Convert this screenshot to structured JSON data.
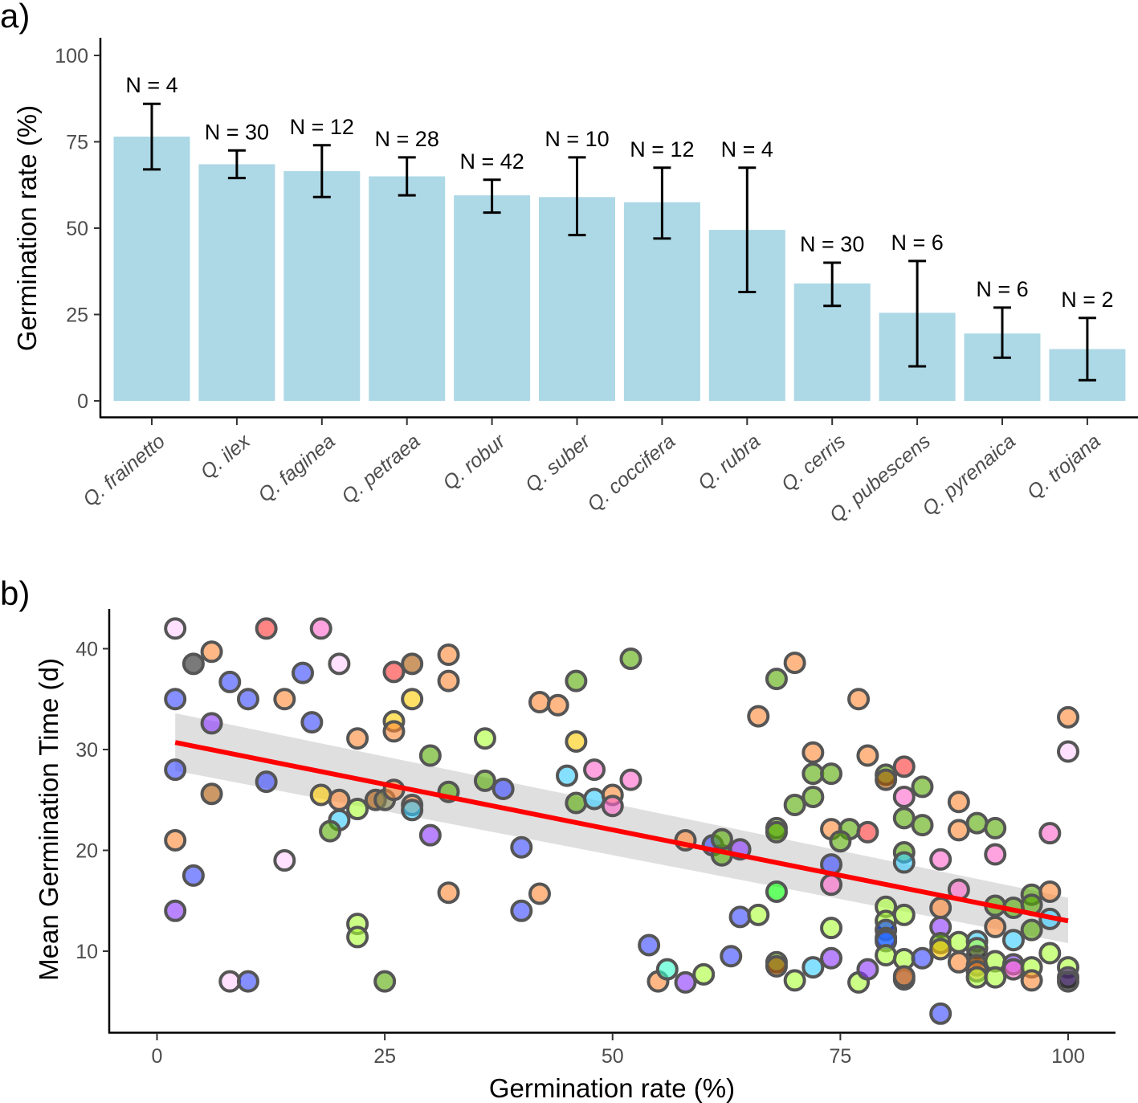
{
  "chart_data": [
    {
      "type": "bar",
      "panel_label": "a)",
      "ylabel": "Germination rate (%)",
      "xlabel": "",
      "ylim": [
        0,
        100
      ],
      "yticks": [
        0,
        25,
        50,
        75,
        100
      ],
      "bar_color": "#add8e6",
      "categories": [
        "Q. frainetto",
        "Q. ilex",
        "Q. faginea",
        "Q. petraea",
        "Q. robur",
        "Q. suber",
        "Q. coccifera",
        "Q. rubra",
        "Q. cerris",
        "Q. pubescens",
        "Q. pyrenaica",
        "Q. trojana"
      ],
      "values": [
        76.5,
        68.5,
        66.5,
        65,
        59.5,
        59,
        57.5,
        49.5,
        34,
        25.5,
        19.5,
        15
      ],
      "err_low": [
        67,
        64.5,
        59,
        59.5,
        54.5,
        48,
        47,
        31.5,
        27.5,
        10,
        12.5,
        6
      ],
      "err_high": [
        86,
        72.5,
        74,
        70.5,
        64,
        70.5,
        67.5,
        67.5,
        40,
        40.5,
        27,
        24
      ],
      "n_labels": [
        "N = 4",
        "N = 30",
        "N = 12",
        "N = 28",
        "N = 42",
        "N = 10",
        "N = 12",
        "N = 4",
        "N = 30",
        "N = 6",
        "N = 6",
        "N = 2"
      ]
    },
    {
      "type": "scatter",
      "panel_label": "b)",
      "xlabel": "Germination rate (%)",
      "ylabel": "Mean Germination Time (d)",
      "xlim": [
        -5,
        105
      ],
      "ylim": [
        2.5,
        44
      ],
      "xticks": [
        0,
        25,
        50,
        75,
        100
      ],
      "yticks": [
        10,
        20,
        30,
        40
      ],
      "trend": {
        "x": [
          2,
          100
        ],
        "y": [
          30.7,
          13.0
        ],
        "color": "#ff0000"
      },
      "ci": {
        "x": [
          2,
          100
        ],
        "upper": [
          33.6,
          15.3
        ],
        "lower": [
          27.9,
          10.8
        ],
        "color": "#d9d9d9"
      },
      "points": [
        [
          2,
          42,
          "#ffccff"
        ],
        [
          12,
          42,
          "#ff3333"
        ],
        [
          18,
          42,
          "#ff66cc"
        ],
        [
          4,
          38.5,
          "#222222"
        ],
        [
          6,
          39.7,
          "#ff8833"
        ],
        [
          8,
          36.7,
          "#3344ff"
        ],
        [
          10,
          35,
          "#3344ff"
        ],
        [
          2,
          35,
          "#3344ff"
        ],
        [
          14,
          35,
          "#ff8833"
        ],
        [
          16,
          37.6,
          "#3344ff"
        ],
        [
          17,
          32.7,
          "#3344ff"
        ],
        [
          20,
          38.5,
          "#ffccff"
        ],
        [
          6,
          32.6,
          "#8833ff"
        ],
        [
          2,
          28,
          "#3344ff"
        ],
        [
          6,
          25.6,
          "#aa5500"
        ],
        [
          12,
          26.8,
          "#3344ff"
        ],
        [
          18,
          25.5,
          "#ffcc00"
        ],
        [
          20,
          25,
          "#ff8833"
        ],
        [
          20,
          23,
          "#33ccff"
        ],
        [
          19,
          21.9,
          "#55aa00"
        ],
        [
          22,
          24.1,
          "#aaff33"
        ],
        [
          24,
          25,
          "#aa5500"
        ],
        [
          25,
          25,
          "#888855"
        ],
        [
          26,
          37.7,
          "#ff3333"
        ],
        [
          28,
          38.5,
          "#aa5500"
        ],
        [
          32,
          39.4,
          "#ff8833"
        ],
        [
          32,
          36.8,
          "#ff8833"
        ],
        [
          28,
          35,
          "#ffcc00"
        ],
        [
          26,
          32.8,
          "#ffcc00"
        ],
        [
          26,
          31.8,
          "#ff8833"
        ],
        [
          22,
          31.1,
          "#ff8833"
        ],
        [
          26,
          26,
          "#ff8833"
        ],
        [
          28,
          24.5,
          "#ff8833"
        ],
        [
          28,
          24,
          "#33ccff"
        ],
        [
          30,
          29.4,
          "#55aa00"
        ],
        [
          32,
          25.8,
          "#55aa00"
        ],
        [
          30,
          21.5,
          "#8833ff"
        ],
        [
          36,
          31.1,
          "#aaff33"
        ],
        [
          36,
          26.9,
          "#55aa00"
        ],
        [
          38,
          26.1,
          "#3344ff"
        ],
        [
          2,
          21,
          "#ff8833"
        ],
        [
          4,
          17.5,
          "#3344ff"
        ],
        [
          2,
          14,
          "#8833ff"
        ],
        [
          14,
          19,
          "#ffccff"
        ],
        [
          22,
          12.7,
          "#aaff33"
        ],
        [
          22,
          11.4,
          "#aaff33"
        ],
        [
          8,
          7,
          "#ffccff"
        ],
        [
          10,
          7,
          "#3344ff"
        ],
        [
          25,
          7,
          "#55aa00"
        ],
        [
          32,
          15.8,
          "#ff8833"
        ],
        [
          40,
          20.3,
          "#3344ff"
        ],
        [
          40,
          14,
          "#3344ff"
        ],
        [
          42,
          15.7,
          "#ff8833"
        ],
        [
          42,
          34.7,
          "#ff8833"
        ],
        [
          44,
          34.4,
          "#ff8833"
        ],
        [
          46,
          36.8,
          "#55aa00"
        ],
        [
          46,
          30.8,
          "#ffcc00"
        ],
        [
          45,
          27.4,
          "#33ccff"
        ],
        [
          46,
          24.7,
          "#55aa00"
        ],
        [
          48,
          28,
          "#ff66cc"
        ],
        [
          48,
          25.1,
          "#33ccff"
        ],
        [
          50,
          25.5,
          "#ff8833"
        ],
        [
          50,
          24.4,
          "#ff66cc"
        ],
        [
          52,
          27,
          "#ff66cc"
        ],
        [
          52,
          39,
          "#55aa00"
        ],
        [
          54,
          10.6,
          "#3344ff"
        ],
        [
          55,
          7,
          "#ff8833"
        ],
        [
          56,
          8.2,
          "#33ffcc"
        ],
        [
          58,
          6.9,
          "#8833ff"
        ],
        [
          60,
          7.7,
          "#aaff33"
        ],
        [
          58,
          21,
          "#ff8833"
        ],
        [
          61,
          20.5,
          "#3344ff"
        ],
        [
          62,
          19.5,
          "#55aa00"
        ],
        [
          62,
          21.1,
          "#55aa00"
        ],
        [
          64,
          20.1,
          "#8833ff"
        ],
        [
          63,
          9.5,
          "#3344ff"
        ],
        [
          64,
          13.4,
          "#3344ff"
        ],
        [
          66,
          13.6,
          "#aaff33"
        ],
        [
          66,
          33.3,
          "#ff8833"
        ],
        [
          68,
          37,
          "#55aa00"
        ],
        [
          70,
          38.6,
          "#ff8833"
        ],
        [
          70,
          24.5,
          "#55aa00"
        ],
        [
          68,
          22.2,
          "#55aa00"
        ],
        [
          68,
          21.8,
          "#55aa00"
        ],
        [
          68,
          15.9,
          "#00ff00"
        ],
        [
          68,
          8.9,
          "#55aa00"
        ],
        [
          68,
          8.5,
          "#aa5500"
        ],
        [
          70,
          7.1,
          "#aaff33"
        ],
        [
          72,
          8.4,
          "#33ccff"
        ],
        [
          72,
          29.7,
          "#ff8833"
        ],
        [
          72,
          27.6,
          "#55aa00"
        ],
        [
          74,
          27.6,
          "#55aa00"
        ],
        [
          72,
          25.3,
          "#55aa00"
        ],
        [
          74,
          22.1,
          "#ff8833"
        ],
        [
          76,
          22.1,
          "#55aa00"
        ],
        [
          75,
          20.9,
          "#55aa00"
        ],
        [
          74,
          18.6,
          "#3344ff"
        ],
        [
          74,
          16.6,
          "#ff66cc"
        ],
        [
          74,
          12.3,
          "#aaff33"
        ],
        [
          74,
          9.3,
          "#8833ff"
        ],
        [
          77,
          35,
          "#ff8833"
        ],
        [
          78,
          29.4,
          "#ff8833"
        ],
        [
          78,
          21.8,
          "#ff3333"
        ],
        [
          77,
          6.9,
          "#aaff33"
        ],
        [
          78,
          8.2,
          "#8833ff"
        ],
        [
          80,
          27.5,
          "#55aa00"
        ],
        [
          80,
          27,
          "#aa5500"
        ],
        [
          82,
          28.3,
          "#ff3333"
        ],
        [
          82,
          25.3,
          "#ff66cc"
        ],
        [
          82,
          23.2,
          "#55aa00"
        ],
        [
          84,
          26.3,
          "#55aa00"
        ],
        [
          84,
          22.5,
          "#55aa00"
        ],
        [
          82,
          19.8,
          "#55aa00"
        ],
        [
          82,
          18.8,
          "#33ccff"
        ],
        [
          80,
          14.4,
          "#aaff33"
        ],
        [
          80,
          13,
          "#aaff33"
        ],
        [
          80,
          12.1,
          "#0033ff"
        ],
        [
          80,
          11.3,
          "#00ccff"
        ],
        [
          80,
          11,
          "#3344ff"
        ],
        [
          80,
          9.6,
          "#aaff33"
        ],
        [
          82,
          13.6,
          "#aaff33"
        ],
        [
          82,
          9.2,
          "#aaff33"
        ],
        [
          82,
          7.2,
          "#222222"
        ],
        [
          82,
          7.5,
          "#ff8833"
        ],
        [
          84,
          9.3,
          "#3344ff"
        ],
        [
          86,
          14.3,
          "#ff8833"
        ],
        [
          86,
          12.4,
          "#8833ff"
        ],
        [
          86,
          10.8,
          "#55aa00"
        ],
        [
          86,
          10.2,
          "#ffcc00"
        ],
        [
          86,
          3.8,
          "#3344ff"
        ],
        [
          86,
          19.1,
          "#ff66cc"
        ],
        [
          88,
          24.8,
          "#ff8833"
        ],
        [
          88,
          22,
          "#ff8833"
        ],
        [
          88,
          16.1,
          "#ff66cc"
        ],
        [
          88,
          10.9,
          "#aaff33"
        ],
        [
          88,
          8.9,
          "#ff8833"
        ],
        [
          90,
          22.7,
          "#55aa00"
        ],
        [
          90,
          11,
          "#33ccff"
        ],
        [
          90,
          10.3,
          "#aaff33"
        ],
        [
          90,
          9.5,
          "#333333"
        ],
        [
          90,
          8.6,
          "#aa5500"
        ],
        [
          90,
          8,
          "#ff8833"
        ],
        [
          90,
          7.4,
          "#aaff33"
        ],
        [
          92,
          22.2,
          "#55aa00"
        ],
        [
          92,
          19.6,
          "#ff66cc"
        ],
        [
          92,
          14.5,
          "#55aa00"
        ],
        [
          92,
          12.4,
          "#ff8833"
        ],
        [
          92,
          9,
          "#aaff33"
        ],
        [
          92,
          7.4,
          "#aaff33"
        ],
        [
          94,
          14.3,
          "#55aa00"
        ],
        [
          94,
          11.1,
          "#33ccff"
        ],
        [
          94,
          8.7,
          "#8833ff"
        ],
        [
          94,
          8.2,
          "#ff66cc"
        ],
        [
          96,
          15.6,
          "#55aa00"
        ],
        [
          96,
          14.6,
          "#55aa00"
        ],
        [
          96,
          12.1,
          "#55aa00"
        ],
        [
          96,
          8.4,
          "#aaff33"
        ],
        [
          96,
          7.1,
          "#ff8833"
        ],
        [
          98,
          21.7,
          "#ff66cc"
        ],
        [
          98,
          15.9,
          "#ff8833"
        ],
        [
          98,
          13.2,
          "#33ccff"
        ],
        [
          98,
          9.8,
          "#aaff33"
        ],
        [
          100,
          33.2,
          "#ff8833"
        ],
        [
          100,
          29.8,
          "#ffccff"
        ],
        [
          100,
          8.4,
          "#aaff33"
        ],
        [
          100,
          7.4,
          "#8833ff"
        ],
        [
          100,
          7,
          "#222222"
        ]
      ]
    }
  ]
}
